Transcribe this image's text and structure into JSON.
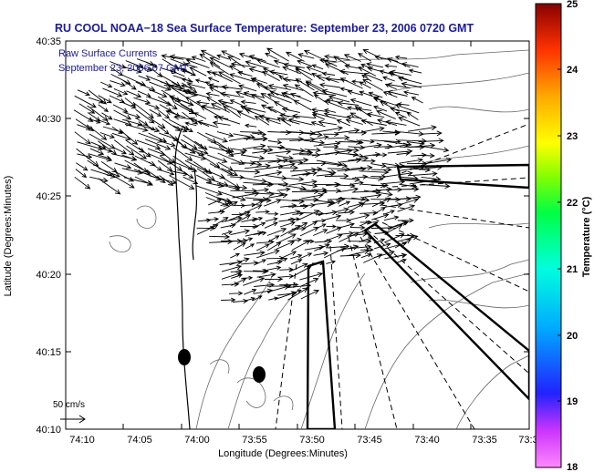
{
  "title": "RU COOL  NOAA−18  Sea Surface Temperature:  September 23, 2006 0720 GMT",
  "legend": {
    "line1": "Raw Surface Currents",
    "line2": "September 23, 2006 07 GMT"
  },
  "scale_label": "50 cm/s",
  "axes": {
    "xlabel": "Longitude (Degrees:Minutes)",
    "ylabel": "Latitude (Degrees:Minutes)",
    "xticks": [
      "74:10",
      "74:05",
      "74:00",
      "73:55",
      "73:50",
      "73:45",
      "73:40",
      "73:35",
      "73:3"
    ],
    "yticks": [
      "40:35",
      "40:30",
      "40:25",
      "40:20",
      "40:15",
      "40:10"
    ]
  },
  "colorbar": {
    "label": "Temperature (°C)",
    "ticks": [
      "25",
      "24",
      "23",
      "22",
      "21",
      "20",
      "19",
      "18"
    ],
    "range": [
      18,
      25
    ]
  },
  "chart_data": {
    "type": "other",
    "title": "RU COOL  NOAA−18  Sea Surface Temperature:  September 23, 2006 0720 GMT",
    "xlabel": "Longitude (Degrees:Minutes)",
    "ylabel": "Latitude (Degrees:Minutes)",
    "colorbar_range": [
      18,
      25
    ],
    "colorbar_unit": "°C",
    "vector_scale": "50 cm/s"
  }
}
